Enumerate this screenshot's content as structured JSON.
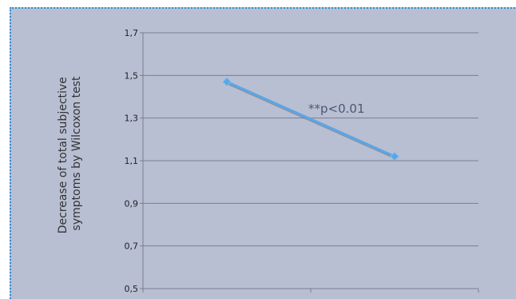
{
  "chart_data": {
    "type": "line",
    "x": [
      "",
      ""
    ],
    "series": [
      {
        "values": [
          1.47,
          1.12
        ],
        "color": "#5aa6e6"
      }
    ],
    "ylabel": [
      "Decrease of total subjective",
      "symptoms by  Wilcoxon test"
    ],
    "ylim": [
      0.5,
      1.7
    ],
    "yticks": [
      "0,5",
      "0,7",
      "0,9",
      "1,1",
      "1,3",
      "1,5",
      "1,7"
    ],
    "annotation": "**p<0.01",
    "grid": true,
    "legend": "none",
    "colors": {
      "background": "#b8bfd3",
      "frame_border": "#2f8fd0",
      "gridline": "#7a7f8c"
    }
  }
}
